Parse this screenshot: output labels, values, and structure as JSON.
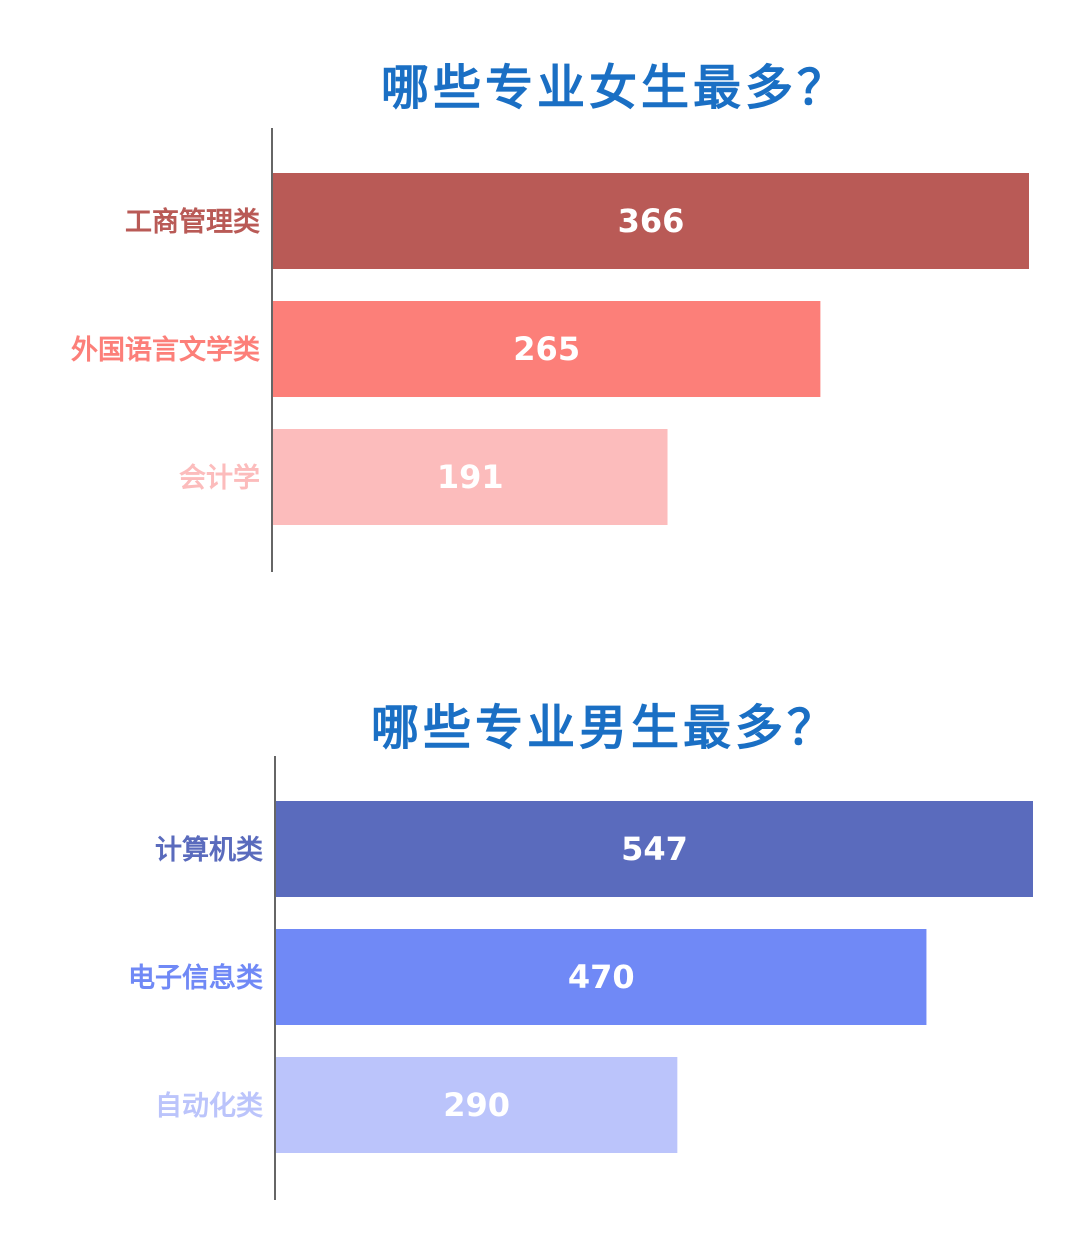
{
  "chart_data": [
    {
      "type": "bar",
      "orientation": "horizontal",
      "title": "哪些专业女生最多？",
      "categories": [
        "工商管理类",
        "外国语言文学类",
        "会计学"
      ],
      "values": [
        366,
        265,
        191
      ],
      "colors": [
        "#b95a56",
        "#fc7f79",
        "#fcbcbc"
      ],
      "xlim": [
        0,
        366
      ],
      "grid": false,
      "legend": "none"
    },
    {
      "type": "bar",
      "orientation": "horizontal",
      "title": "哪些专业男生最多？",
      "categories": [
        "计算机类",
        "电子信息类",
        "自动化类"
      ],
      "values": [
        547,
        470,
        290
      ],
      "colors": [
        "#5a6bbd",
        "#7089f6",
        "#bbc4fb"
      ],
      "xlim": [
        0,
        547
      ],
      "grid": false,
      "legend": "none"
    }
  ]
}
